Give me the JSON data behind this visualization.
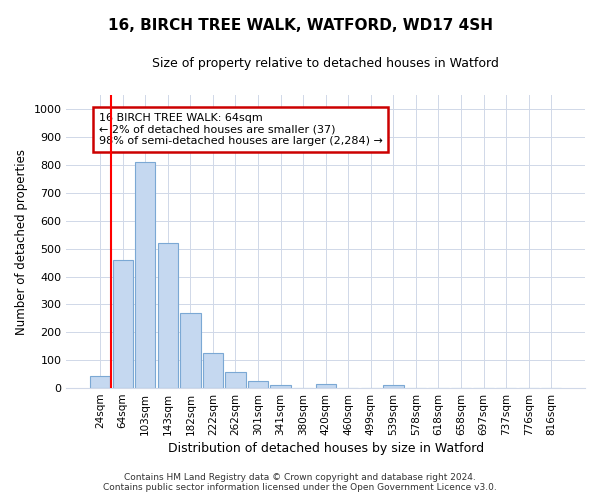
{
  "title_line1": "16, BIRCH TREE WALK, WATFORD, WD17 4SH",
  "title_line2": "Size of property relative to detached houses in Watford",
  "xlabel": "Distribution of detached houses by size in Watford",
  "ylabel": "Number of detached properties",
  "categories": [
    "24sqm",
    "64sqm",
    "103sqm",
    "143sqm",
    "182sqm",
    "222sqm",
    "262sqm",
    "301sqm",
    "341sqm",
    "380sqm",
    "420sqm",
    "460sqm",
    "499sqm",
    "539sqm",
    "578sqm",
    "618sqm",
    "658sqm",
    "697sqm",
    "737sqm",
    "776sqm",
    "816sqm"
  ],
  "bar_values": [
    45,
    460,
    810,
    520,
    270,
    125,
    58,
    25,
    12,
    0,
    15,
    0,
    0,
    10,
    0,
    0,
    0,
    0,
    0,
    0,
    0
  ],
  "bar_color": "#c5d8f0",
  "bar_edge_color": "#7ba8d4",
  "red_line_index": 1,
  "ylim": [
    0,
    1050
  ],
  "yticks": [
    0,
    100,
    200,
    300,
    400,
    500,
    600,
    700,
    800,
    900,
    1000
  ],
  "annotation_text": "16 BIRCH TREE WALK: 64sqm\n← 2% of detached houses are smaller (37)\n98% of semi-detached houses are larger (2,284) →",
  "annotation_box_color": "#ffffff",
  "annotation_box_edge": "#cc0000",
  "footnote_line1": "Contains HM Land Registry data © Crown copyright and database right 2024.",
  "footnote_line2": "Contains public sector information licensed under the Open Government Licence v3.0.",
  "bg_color": "#ffffff",
  "plot_bg_color": "#ffffff",
  "grid_color": "#d0d8e8"
}
